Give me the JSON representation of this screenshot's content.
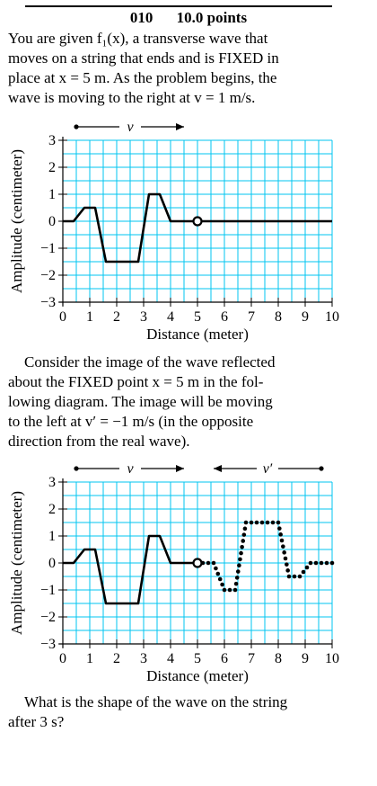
{
  "problem": {
    "number": "010",
    "points": "10.0 points"
  },
  "intro_lines": [
    "You are given f₁(x), a transverse wave that",
    "moves on a string that ends and is FIXED in",
    "place at x = 5 m. As the problem begins, the",
    "wave is moving to the right at v = 1 m/s."
  ],
  "middle_lines": [
    "Consider the image of the wave reflected",
    "about the FIXED point x = 5 m in the fol-",
    "lowing diagram. The image will be moving",
    "to the left at v′ = −1 m/s (in the opposite",
    "direction from the real wave)."
  ],
  "question_lines": [
    "What is the shape of the wave on the string",
    "after 3 s?"
  ],
  "grid_color": "#00c5f0",
  "chart_data": [
    {
      "type": "line",
      "xlabel": "Distance (meter)",
      "ylabel": "Amplitude (centimeter)",
      "xlim": [
        0,
        10
      ],
      "ylim": [
        -3,
        3
      ],
      "x_ticks": [
        "0",
        "1",
        "2",
        "3",
        "4",
        "5",
        "6",
        "7",
        "8",
        "9",
        "10"
      ],
      "y_ticks": [
        "3",
        "2",
        "1",
        "0",
        "−1",
        "−2",
        "−3"
      ],
      "arrows": [
        {
          "label": "v",
          "direction": "right"
        }
      ],
      "series": [
        {
          "style": "solid",
          "x": [
            0,
            0.4,
            0.8,
            1.2,
            1.6,
            2.4,
            2.8,
            3.2,
            3.6,
            4.0,
            4.4,
            4.6,
            5.0
          ],
          "y": [
            0,
            0,
            0.5,
            0.5,
            -1.5,
            -1.5,
            -1.5,
            1.0,
            1.0,
            0,
            0,
            0,
            0
          ]
        },
        {
          "style": "solid",
          "x": [
            5,
            10
          ],
          "y": [
            0,
            0
          ]
        }
      ],
      "fixed_point": {
        "x": 5,
        "y": 0
      }
    },
    {
      "type": "line",
      "xlabel": "Distance (meter)",
      "ylabel": "Amplitude (centimeter)",
      "xlim": [
        0,
        10
      ],
      "ylim": [
        -3,
        3
      ],
      "x_ticks": [
        "0",
        "1",
        "2",
        "3",
        "4",
        "5",
        "6",
        "7",
        "8",
        "9",
        "10"
      ],
      "y_ticks": [
        "3",
        "2",
        "1",
        "0",
        "−1",
        "−2",
        "−3"
      ],
      "arrows": [
        {
          "label": "v",
          "direction": "right"
        },
        {
          "label": "v′",
          "direction": "left"
        }
      ],
      "series": [
        {
          "style": "solid",
          "x": [
            0,
            0.4,
            0.8,
            1.2,
            1.6,
            2.4,
            2.8,
            3.2,
            3.6,
            4.0,
            4.4,
            4.6,
            5.0
          ],
          "y": [
            0,
            0,
            0.5,
            0.5,
            -1.5,
            -1.5,
            -1.5,
            1.0,
            1.0,
            0,
            0,
            0,
            0
          ]
        },
        {
          "style": "dotted",
          "x": [
            5.0,
            5.4,
            5.6,
            6.0,
            6.4,
            6.8,
            7.2,
            7.6,
            8.0,
            8.4,
            8.8,
            9.2,
            9.6,
            10.0
          ],
          "y": [
            0,
            0,
            0,
            -1.0,
            -1.0,
            1.5,
            1.5,
            1.5,
            1.5,
            -0.5,
            -0.5,
            0,
            0,
            0
          ]
        }
      ],
      "fixed_point": {
        "x": 5,
        "y": 0
      }
    }
  ]
}
